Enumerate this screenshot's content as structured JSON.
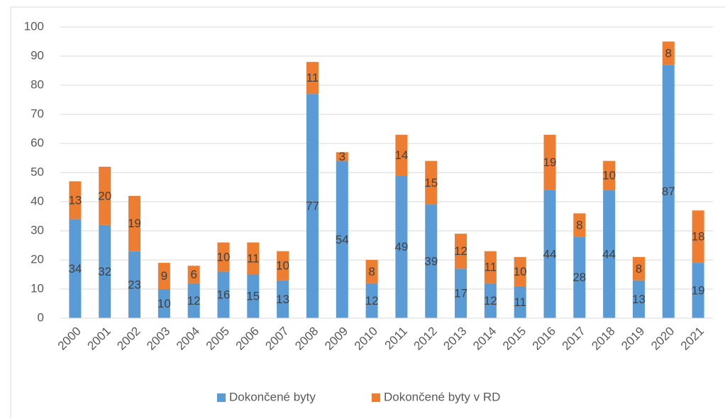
{
  "chart_data": {
    "type": "stacked_bar",
    "categories": [
      "2000",
      "2001",
      "2002",
      "2003",
      "2004",
      "2005",
      "2006",
      "2007",
      "2008",
      "2009",
      "2010",
      "2011",
      "2012",
      "2013",
      "2014",
      "2015",
      "2016",
      "2017",
      "2018",
      "2019",
      "2020",
      "2021"
    ],
    "series": [
      {
        "name": "Dokončené byty",
        "color": "#5b9bd5",
        "values": [
          34,
          32,
          23,
          10,
          12,
          16,
          15,
          13,
          77,
          54,
          12,
          49,
          39,
          17,
          12,
          11,
          44,
          28,
          44,
          13,
          87,
          19
        ]
      },
      {
        "name": "Dokončené byty v RD",
        "color": "#ed7d31",
        "values": [
          13,
          20,
          19,
          9,
          6,
          10,
          11,
          10,
          11,
          3,
          8,
          14,
          15,
          12,
          11,
          10,
          19,
          8,
          10,
          8,
          8,
          18
        ]
      }
    ],
    "ylim": [
      0,
      100
    ],
    "yticks": [
      0,
      10,
      20,
      30,
      40,
      50,
      60,
      70,
      80,
      90,
      100
    ],
    "grid": true,
    "legend": "bottom"
  }
}
